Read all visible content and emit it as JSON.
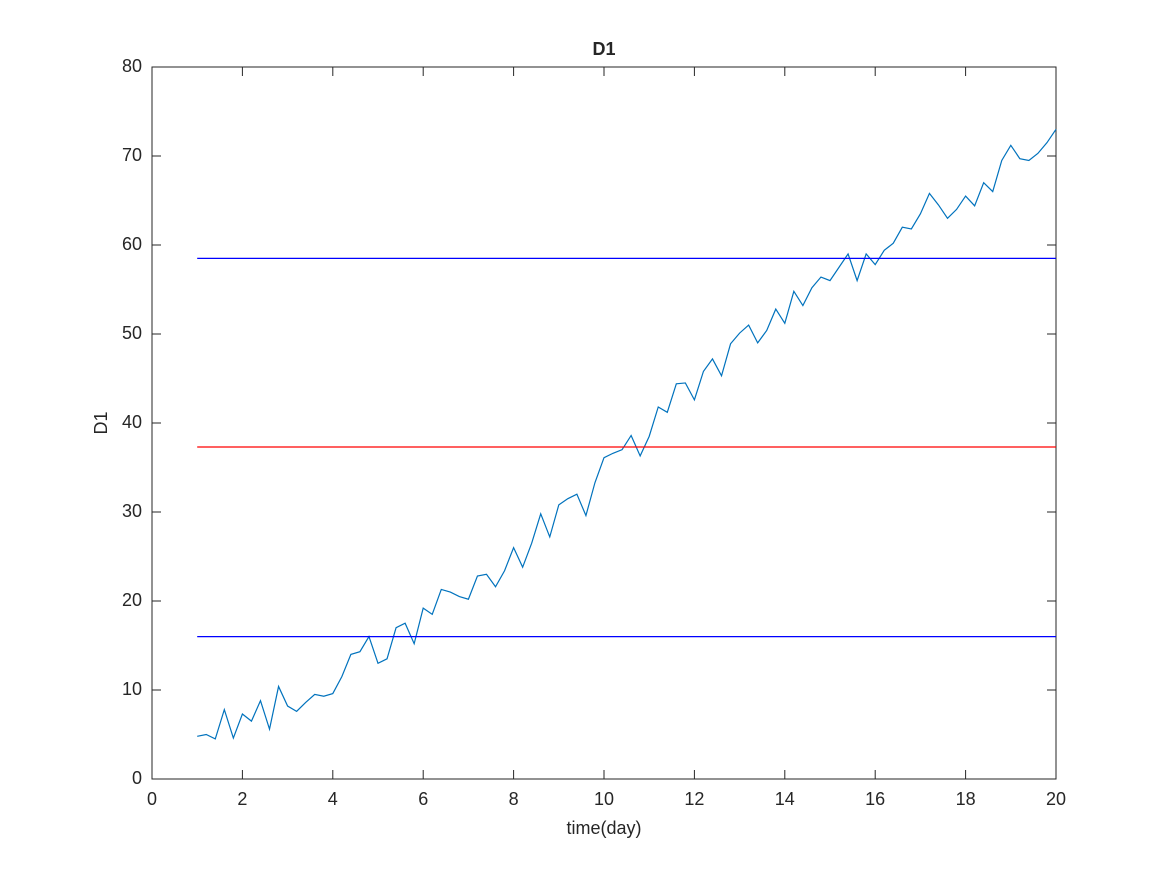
{
  "chart_data": {
    "type": "line",
    "title": "D1",
    "xlabel": "time(day)",
    "ylabel": "D1",
    "xlim": [
      0,
      20
    ],
    "ylim": [
      0,
      80
    ],
    "xticks": [
      0,
      2,
      4,
      6,
      8,
      10,
      12,
      14,
      16,
      18,
      20
    ],
    "yticks": [
      0,
      10,
      20,
      30,
      40,
      50,
      60,
      70,
      80
    ],
    "series": [
      {
        "color": "#0072bd",
        "x": [
          1.0,
          1.2,
          1.4,
          1.6,
          1.8,
          2.0,
          2.2,
          2.4,
          2.6,
          2.8,
          3.0,
          3.2,
          3.4,
          3.6,
          3.8,
          4.0,
          4.2,
          4.4,
          4.6,
          4.8,
          5.0,
          5.2,
          5.4,
          5.6,
          5.8,
          6.0,
          6.2,
          6.4,
          6.6,
          6.8,
          7.0,
          7.2,
          7.4,
          7.6,
          7.8,
          8.0,
          8.2,
          8.4,
          8.6,
          8.8,
          9.0,
          9.2,
          9.4,
          9.6,
          9.8,
          10.0,
          10.2,
          10.4,
          10.6,
          10.8,
          11.0,
          11.2,
          11.4,
          11.6,
          11.8,
          12.0,
          12.2,
          12.4,
          12.6,
          12.8,
          13.0,
          13.2,
          13.4,
          13.6,
          13.8,
          14.0,
          14.2,
          14.4,
          14.6,
          14.8,
          15.0,
          15.2,
          15.4,
          15.6,
          15.8,
          16.0,
          16.2,
          16.4,
          16.6,
          16.8,
          17.0,
          17.2,
          17.4,
          17.6,
          17.8,
          18.0,
          18.2,
          18.4,
          18.6,
          18.8,
          19.0,
          19.2,
          19.4,
          19.6,
          19.8,
          20.0
        ],
        "values": [
          4.8,
          5.0,
          4.5,
          7.8,
          4.6,
          7.3,
          6.5,
          8.8,
          5.6,
          10.4,
          8.2,
          7.6,
          8.6,
          9.5,
          9.3,
          9.6,
          11.5,
          14.0,
          14.3,
          16.0,
          13.0,
          13.5,
          17.0,
          17.5,
          15.2,
          19.2,
          18.5,
          21.3,
          21.0,
          20.5,
          20.2,
          22.8,
          23.0,
          21.6,
          23.4,
          26.0,
          23.8,
          26.5,
          29.8,
          27.2,
          30.8,
          31.5,
          32.0,
          29.6,
          33.3,
          36.1,
          36.6,
          37.0,
          38.6,
          36.3,
          38.5,
          41.8,
          41.2,
          44.4,
          44.5,
          42.6,
          45.8,
          47.2,
          45.3,
          48.9,
          50.1,
          51.0,
          49.0,
          50.4,
          52.8,
          51.2,
          54.8,
          53.2,
          55.2,
          56.4,
          56.0,
          57.5,
          59.0,
          56.0,
          59.0,
          57.8,
          59.4,
          60.2,
          62.0,
          61.8,
          63.5,
          65.8,
          64.5,
          63.0,
          64.0,
          65.5,
          64.4,
          67.0,
          66.0,
          69.5,
          71.2,
          69.7,
          69.5,
          70.3,
          71.5,
          73.0
        ]
      },
      {
        "color": "#0000ff",
        "x": [
          1,
          20
        ],
        "values": [
          58.5,
          58.5
        ]
      },
      {
        "color": "#ff0000",
        "x": [
          1,
          20
        ],
        "values": [
          37.3,
          37.3
        ]
      },
      {
        "color": "#0000ff",
        "x": [
          1,
          20
        ],
        "values": [
          16.0,
          16.0
        ]
      }
    ]
  }
}
